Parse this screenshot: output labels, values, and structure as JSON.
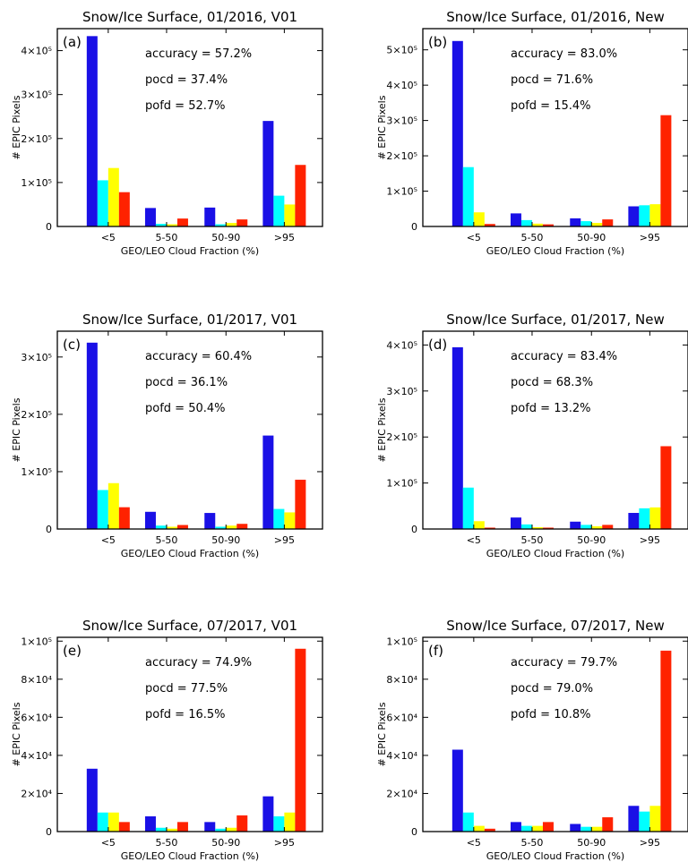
{
  "colors": {
    "series": [
      "#1a10e6",
      "#00ffff",
      "#ffff00",
      "#ff2200"
    ],
    "axis": "#000000"
  },
  "chart_data": [
    {
      "type": "bar",
      "title": "Snow/Ice Surface, 01/2016, V01",
      "panel_label": "(a)",
      "xlabel": "GEO/LEO Cloud Fraction (%)",
      "ylabel": "# EPIC Pixels",
      "categories": [
        "<5",
        "5-50",
        "50-90",
        ">95"
      ],
      "series": [
        {
          "values": [
            433000,
            42000,
            43000,
            240000
          ]
        },
        {
          "values": [
            105000,
            6000,
            5000,
            70000
          ]
        },
        {
          "values": [
            133000,
            5000,
            8000,
            50000
          ]
        },
        {
          "values": [
            78000,
            18000,
            16000,
            140000
          ]
        }
      ],
      "ylim": [
        0,
        450000
      ],
      "yticks": [
        {
          "v": 0,
          "label": "0"
        },
        {
          "v": 100000,
          "label": "1×10⁵"
        },
        {
          "v": 200000,
          "label": "2×10⁵"
        },
        {
          "v": 300000,
          "label": "3×10⁵"
        },
        {
          "v": 400000,
          "label": "4×10⁵"
        }
      ],
      "stats": [
        "accuracy = 57.2%",
        "pocd = 37.4%",
        "pofd = 52.7%"
      ]
    },
    {
      "type": "bar",
      "title": "Snow/Ice Surface, 01/2016, New",
      "panel_label": "(b)",
      "xlabel": "GEO/LEO Cloud Fraction (%)",
      "ylabel": "# EPIC Pixels",
      "categories": [
        "<5",
        "5-50",
        "50-90",
        ">95"
      ],
      "series": [
        {
          "values": [
            525000,
            37000,
            23000,
            57000
          ]
        },
        {
          "values": [
            168000,
            18000,
            15000,
            60000
          ]
        },
        {
          "values": [
            40000,
            8000,
            10000,
            63000
          ]
        },
        {
          "values": [
            7000,
            6000,
            20000,
            315000
          ]
        }
      ],
      "ylim": [
        0,
        560000
      ],
      "yticks": [
        {
          "v": 0,
          "label": "0"
        },
        {
          "v": 100000,
          "label": "1×10⁵"
        },
        {
          "v": 200000,
          "label": "2×10⁵"
        },
        {
          "v": 300000,
          "label": "3×10⁵"
        },
        {
          "v": 400000,
          "label": "4×10⁵"
        },
        {
          "v": 500000,
          "label": "5×10⁵"
        }
      ],
      "stats": [
        "accuracy = 83.0%",
        "pocd = 71.6%",
        "pofd = 15.4%"
      ]
    },
    {
      "type": "bar",
      "title": "Snow/Ice Surface, 01/2017, V01",
      "panel_label": "(c)",
      "xlabel": "GEO/LEO Cloud Fraction (%)",
      "ylabel": "# EPIC Pixels",
      "categories": [
        "<5",
        "5-50",
        "50-90",
        ">95"
      ],
      "series": [
        {
          "values": [
            325000,
            30000,
            28000,
            163000
          ]
        },
        {
          "values": [
            68000,
            6000,
            4000,
            35000
          ]
        },
        {
          "values": [
            80000,
            4000,
            6000,
            29000
          ]
        },
        {
          "values": [
            38000,
            7000,
            9000,
            86000
          ]
        }
      ],
      "ylim": [
        0,
        345000
      ],
      "yticks": [
        {
          "v": 0,
          "label": "0"
        },
        {
          "v": 100000,
          "label": "1×10⁵"
        },
        {
          "v": 200000,
          "label": "2×10⁵"
        },
        {
          "v": 300000,
          "label": "3×10⁵"
        }
      ],
      "stats": [
        "accuracy = 60.4%",
        "pocd = 36.1%",
        "pofd = 50.4%"
      ]
    },
    {
      "type": "bar",
      "title": "Snow/Ice Surface, 01/2017, New",
      "panel_label": "(d)",
      "xlabel": "GEO/LEO Cloud Fraction (%)",
      "ylabel": "# EPIC Pixels",
      "categories": [
        "<5",
        "5-50",
        "50-90",
        ">95"
      ],
      "series": [
        {
          "values": [
            395000,
            25000,
            16000,
            35000
          ]
        },
        {
          "values": [
            90000,
            10000,
            9000,
            45000
          ]
        },
        {
          "values": [
            17000,
            4000,
            6000,
            47000
          ]
        },
        {
          "values": [
            3000,
            3000,
            9000,
            180000
          ]
        }
      ],
      "ylim": [
        0,
        430000
      ],
      "yticks": [
        {
          "v": 0,
          "label": "0"
        },
        {
          "v": 100000,
          "label": "1×10⁵"
        },
        {
          "v": 200000,
          "label": "2×10⁵"
        },
        {
          "v": 300000,
          "label": "3×10⁵"
        },
        {
          "v": 400000,
          "label": "4×10⁵"
        }
      ],
      "stats": [
        "accuracy = 83.4%",
        "pocd = 68.3%",
        "pofd = 13.2%"
      ]
    },
    {
      "type": "bar",
      "title": "Snow/Ice Surface, 07/2017, V01",
      "panel_label": "(e)",
      "xlabel": "GEO/LEO Cloud Fraction (%)",
      "ylabel": "# EPIC Pixels",
      "categories": [
        "<5",
        "5-50",
        "50-90",
        ">95"
      ],
      "series": [
        {
          "values": [
            33000,
            8000,
            5000,
            18500
          ]
        },
        {
          "values": [
            10000,
            2000,
            1500,
            8000
          ]
        },
        {
          "values": [
            10000,
            1500,
            2000,
            10000
          ]
        },
        {
          "values": [
            5000,
            5000,
            8500,
            96000
          ]
        }
      ],
      "ylim": [
        0,
        102000
      ],
      "yticks": [
        {
          "v": 0,
          "label": "0"
        },
        {
          "v": 20000,
          "label": "2×10⁴"
        },
        {
          "v": 40000,
          "label": "4×10⁴"
        },
        {
          "v": 60000,
          "label": "6×10⁴"
        },
        {
          "v": 80000,
          "label": "8×10⁴"
        },
        {
          "v": 100000,
          "label": "1×10⁵"
        }
      ],
      "stats": [
        "accuracy = 74.9%",
        "pocd = 77.5%",
        "pofd = 16.5%"
      ]
    },
    {
      "type": "bar",
      "title": "Snow/Ice Surface, 07/2017, New",
      "panel_label": "(f)",
      "xlabel": "GEO/LEO Cloud Fraction (%)",
      "ylabel": "# EPIC Pixels",
      "categories": [
        "<5",
        "5-50",
        "50-90",
        ">95"
      ],
      "series": [
        {
          "values": [
            43000,
            5000,
            4000,
            13500
          ]
        },
        {
          "values": [
            10000,
            3000,
            2500,
            10500
          ]
        },
        {
          "values": [
            3000,
            3000,
            2500,
            13500
          ]
        },
        {
          "values": [
            1500,
            5000,
            7500,
            95000
          ]
        }
      ],
      "ylim": [
        0,
        102000
      ],
      "yticks": [
        {
          "v": 0,
          "label": "0"
        },
        {
          "v": 20000,
          "label": "2×10⁴"
        },
        {
          "v": 40000,
          "label": "4×10⁴"
        },
        {
          "v": 60000,
          "label": "6×10⁴"
        },
        {
          "v": 80000,
          "label": "8×10⁴"
        },
        {
          "v": 100000,
          "label": "1×10⁵"
        }
      ],
      "stats": [
        "accuracy = 79.7%",
        "pocd = 79.0%",
        "pofd = 10.8%"
      ]
    }
  ]
}
